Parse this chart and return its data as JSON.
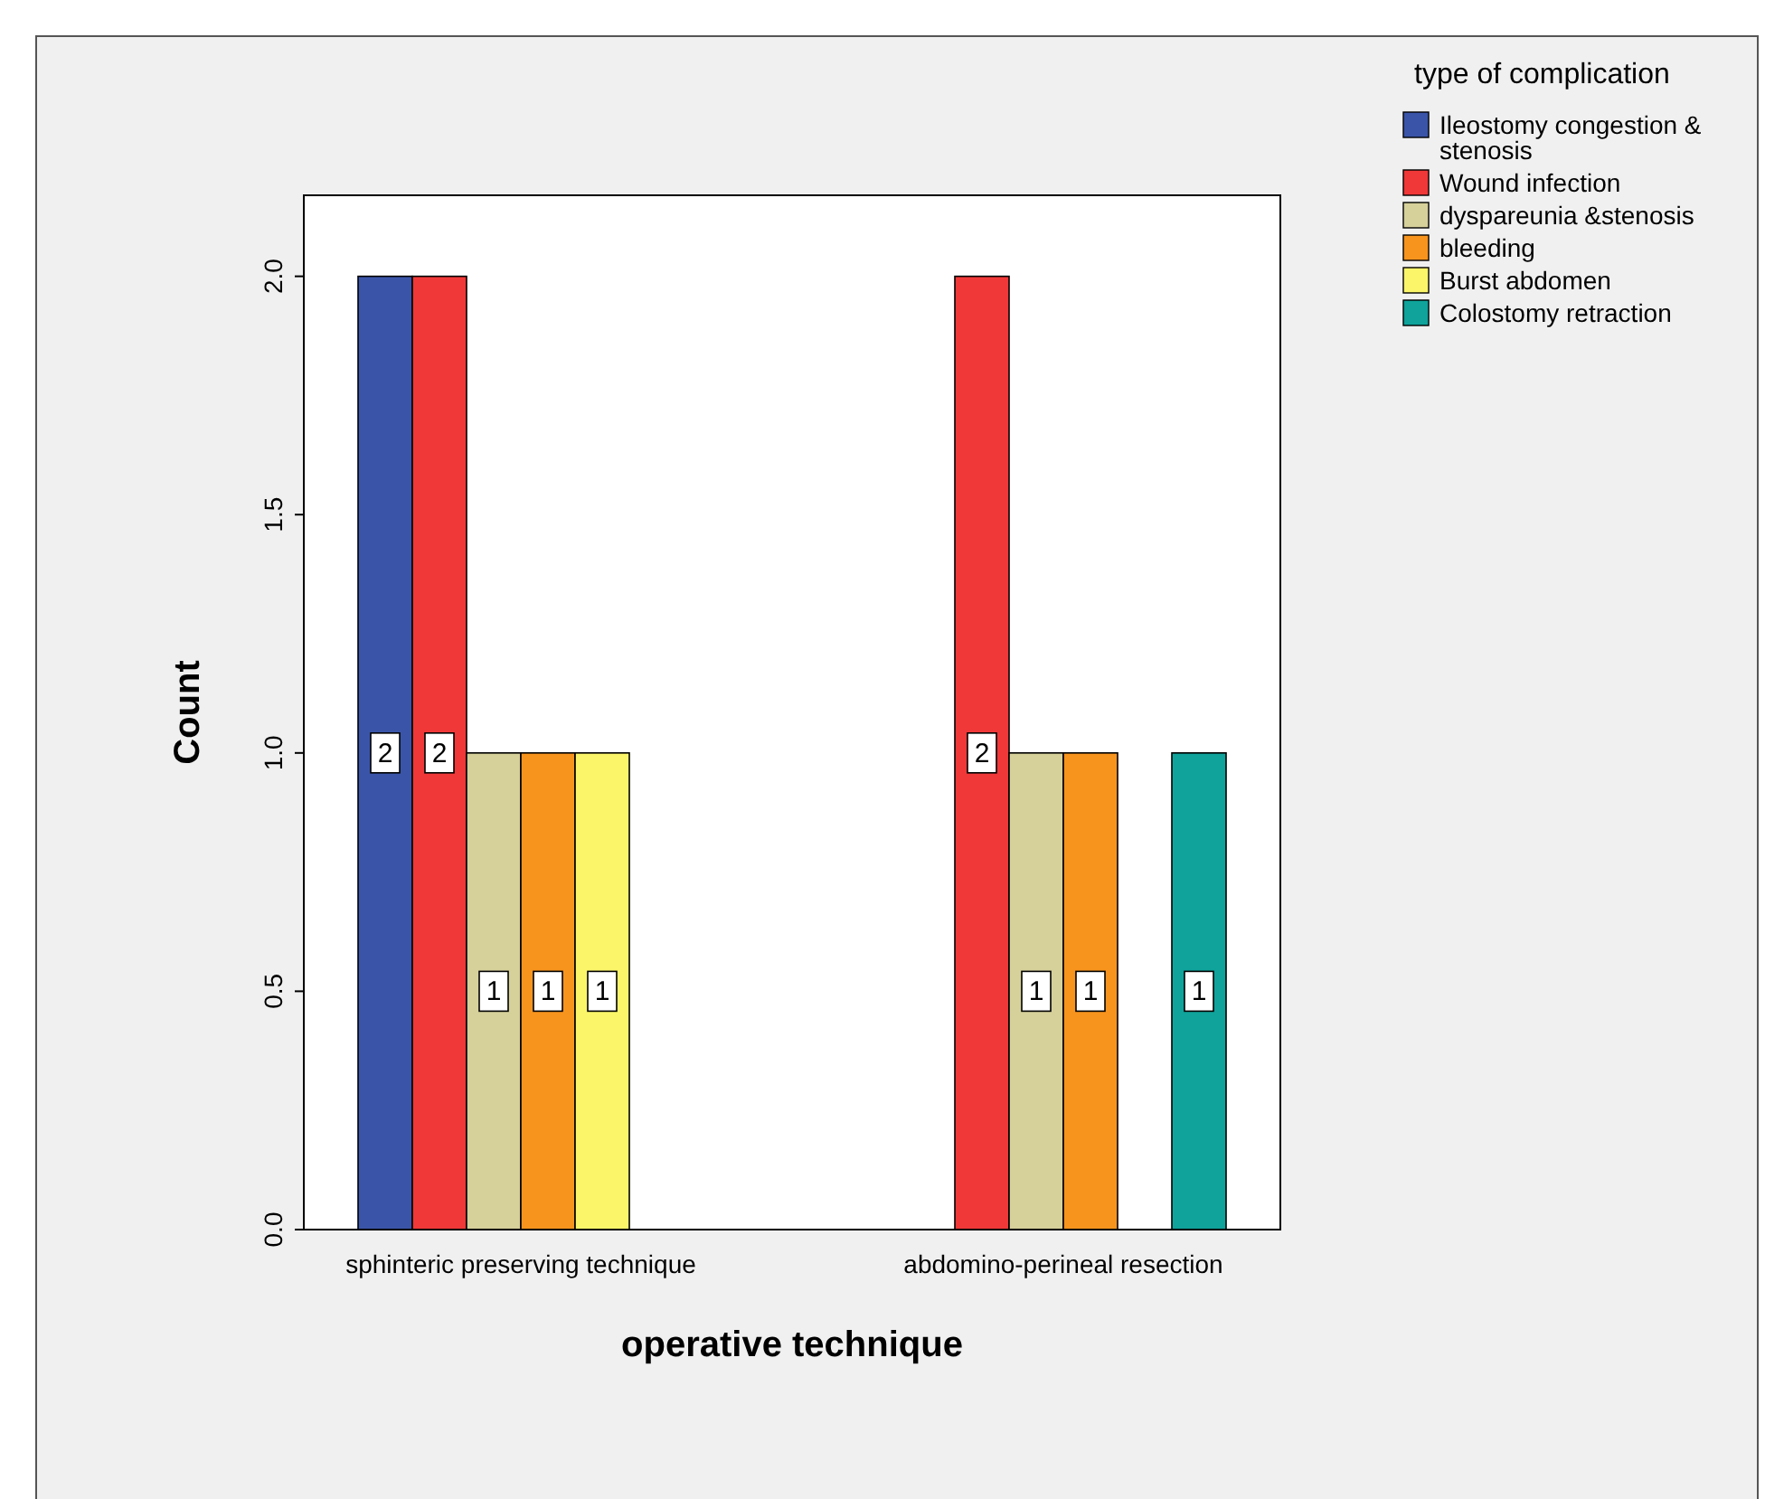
{
  "chart_data": {
    "type": "bar",
    "xlabel": "operative technique",
    "ylabel": "Count",
    "legend_title": "type of complication",
    "categories": [
      "sphinteric preserving technique",
      "abdomino-perineal resection"
    ],
    "series": [
      {
        "name": "Ileostomy congestion & stenosis",
        "color": "#3a55a8",
        "values": [
          2,
          null
        ]
      },
      {
        "name": "Wound infection",
        "color": "#f03838",
        "values": [
          2,
          2
        ]
      },
      {
        "name": "dyspareunia &stenosis",
        "color": "#d6d09a",
        "values": [
          1,
          1
        ]
      },
      {
        "name": "bleeding",
        "color": "#f7941d",
        "values": [
          1,
          1
        ]
      },
      {
        "name": "Burst abdomen",
        "color": "#fbf56a",
        "values": [
          1,
          null
        ]
      },
      {
        "name": "Colostomy retraction",
        "color": "#0fa39b",
        "values": [
          null,
          1
        ]
      }
    ],
    "ylim": [
      0,
      2.17
    ],
    "yticks": [
      {
        "value": 0,
        "label": "0.0"
      },
      {
        "value": 0.5,
        "label": "0.5"
      },
      {
        "value": 1,
        "label": "1.0"
      },
      {
        "value": 1.5,
        "label": "1.5"
      },
      {
        "value": 2,
        "label": "2.0"
      }
    ],
    "data_labels": true,
    "grid": false,
    "legend": "right"
  }
}
